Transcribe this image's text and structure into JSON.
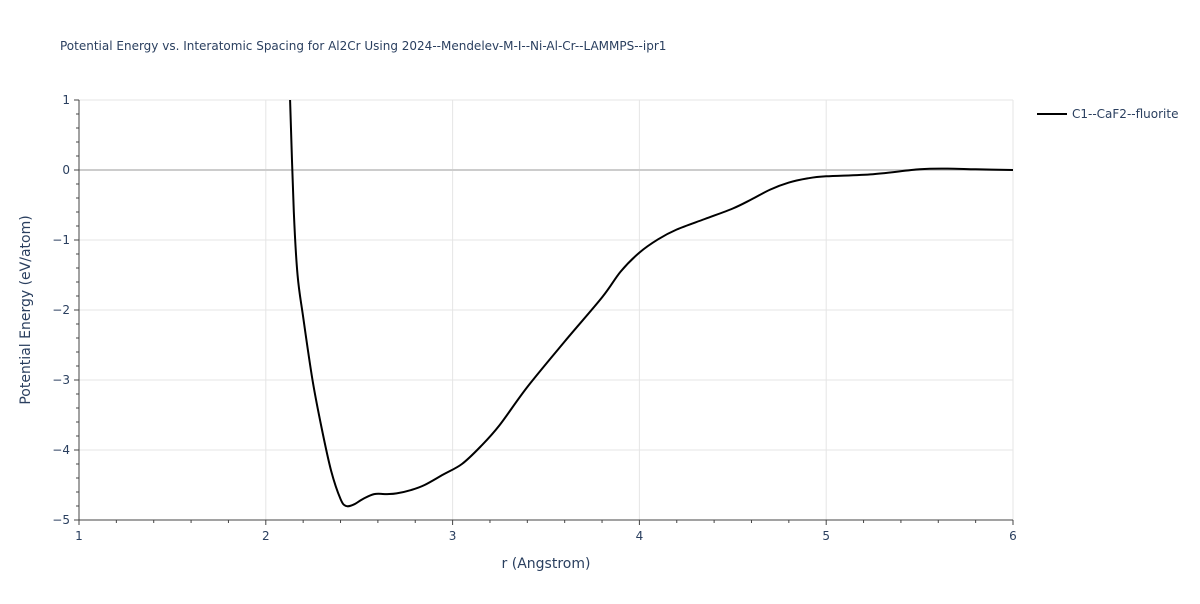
{
  "chart_data": {
    "type": "line",
    "title": "Potential Energy vs. Interatomic Spacing for Al2Cr Using 2024--Mendelev-M-I--Ni-Al-Cr--LAMMPS--ipr1",
    "xlabel": "r (Angstrom)",
    "ylabel": "Potential Energy (eV/atom)",
    "xlim": [
      1,
      6
    ],
    "ylim": [
      -5,
      1
    ],
    "x_ticks": [
      1,
      2,
      3,
      4,
      5,
      6
    ],
    "x_tick_labels": [
      "1",
      "2",
      "3",
      "4",
      "5",
      "6"
    ],
    "y_ticks": [
      1,
      0,
      -1,
      -2,
      -3,
      -4,
      -5
    ],
    "y_tick_labels": [
      "1",
      "0",
      "−1",
      "−2",
      "−3",
      "−4",
      "−5"
    ],
    "grid": true,
    "legend_position": "top-right",
    "series": [
      {
        "name": "C1--CaF2--fluorite",
        "color": "#000000",
        "x": [
          2.13,
          2.15,
          2.17,
          2.2,
          2.25,
          2.3,
          2.35,
          2.4,
          2.43,
          2.47,
          2.52,
          2.58,
          2.65,
          2.7,
          2.78,
          2.85,
          2.95,
          3.05,
          3.15,
          3.25,
          3.4,
          3.6,
          3.8,
          3.9,
          4.0,
          4.1,
          4.2,
          4.35,
          4.5,
          4.6,
          4.7,
          4.8,
          4.9,
          5.0,
          5.25,
          5.5,
          5.65,
          5.8,
          6.0
        ],
        "y": [
          1.0,
          -0.6,
          -1.5,
          -2.1,
          -3.0,
          -3.7,
          -4.3,
          -4.7,
          -4.8,
          -4.78,
          -4.7,
          -4.63,
          -4.63,
          -4.62,
          -4.57,
          -4.5,
          -4.35,
          -4.2,
          -3.95,
          -3.65,
          -3.1,
          -2.45,
          -1.82,
          -1.45,
          -1.18,
          -0.99,
          -0.85,
          -0.7,
          -0.55,
          -0.42,
          -0.28,
          -0.18,
          -0.12,
          -0.09,
          -0.06,
          0.01,
          0.02,
          0.01,
          0.0
        ]
      }
    ]
  }
}
